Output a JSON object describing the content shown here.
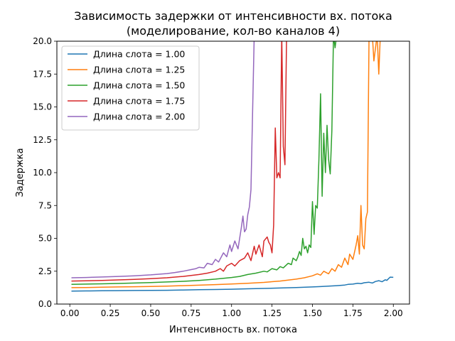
{
  "chart_data": {
    "type": "line",
    "title_line1": "Зависимость задержки от интенсивности вх. потока",
    "title_line2": "(моделирование, кол-во каналов 4)",
    "xlabel": "Интенсивность вх. потока",
    "ylabel": "Задержка",
    "xlim": [
      -0.08,
      2.1
    ],
    "ylim": [
      0,
      20
    ],
    "xticks": [
      0.0,
      0.25,
      0.5,
      0.75,
      1.0,
      1.25,
      1.5,
      1.75,
      2.0
    ],
    "xtick_labels": [
      "0.00",
      "0.25",
      "0.50",
      "0.75",
      "1.00",
      "1.25",
      "1.50",
      "1.75",
      "2.00"
    ],
    "yticks": [
      0.0,
      2.5,
      5.0,
      7.5,
      10.0,
      12.5,
      15.0,
      17.5,
      20.0
    ],
    "ytick_labels": [
      "0.0",
      "2.5",
      "5.0",
      "7.5",
      "10.0",
      "12.5",
      "15.0",
      "17.5",
      "20.0"
    ],
    "grid": false,
    "legend_position": "top-left",
    "series": [
      {
        "name": "Длина слота = 1.00",
        "color": "#1f77b4",
        "points": [
          [
            0.01,
            0.99
          ],
          [
            0.1,
            1.0
          ],
          [
            0.2,
            1.01
          ],
          [
            0.3,
            1.02
          ],
          [
            0.4,
            1.03
          ],
          [
            0.5,
            1.04
          ],
          [
            0.6,
            1.05
          ],
          [
            0.7,
            1.07
          ],
          [
            0.8,
            1.09
          ],
          [
            0.9,
            1.11
          ],
          [
            1.0,
            1.13
          ],
          [
            1.1,
            1.16
          ],
          [
            1.2,
            1.19
          ],
          [
            1.3,
            1.22
          ],
          [
            1.4,
            1.26
          ],
          [
            1.5,
            1.3
          ],
          [
            1.55,
            1.33
          ],
          [
            1.6,
            1.36
          ],
          [
            1.65,
            1.4
          ],
          [
            1.7,
            1.45
          ],
          [
            1.72,
            1.5
          ],
          [
            1.75,
            1.52
          ],
          [
            1.78,
            1.58
          ],
          [
            1.8,
            1.55
          ],
          [
            1.82,
            1.62
          ],
          [
            1.85,
            1.66
          ],
          [
            1.87,
            1.6
          ],
          [
            1.89,
            1.72
          ],
          [
            1.91,
            1.78
          ],
          [
            1.93,
            1.7
          ],
          [
            1.95,
            1.85
          ],
          [
            1.96,
            1.8
          ],
          [
            1.98,
            2.05
          ],
          [
            2.0,
            2.03
          ]
        ]
      },
      {
        "name": "Длина слота = 1.25",
        "color": "#ff7f0e",
        "points": [
          [
            0.01,
            1.25
          ],
          [
            0.1,
            1.26
          ],
          [
            0.2,
            1.28
          ],
          [
            0.3,
            1.3
          ],
          [
            0.4,
            1.32
          ],
          [
            0.5,
            1.34
          ],
          [
            0.6,
            1.37
          ],
          [
            0.7,
            1.4
          ],
          [
            0.8,
            1.44
          ],
          [
            0.9,
            1.48
          ],
          [
            1.0,
            1.53
          ],
          [
            1.1,
            1.58
          ],
          [
            1.2,
            1.65
          ],
          [
            1.3,
            1.75
          ],
          [
            1.35,
            1.82
          ],
          [
            1.4,
            1.9
          ],
          [
            1.45,
            2.0
          ],
          [
            1.5,
            2.15
          ],
          [
            1.53,
            2.3
          ],
          [
            1.55,
            2.2
          ],
          [
            1.57,
            2.5
          ],
          [
            1.6,
            2.3
          ],
          [
            1.62,
            2.7
          ],
          [
            1.64,
            2.5
          ],
          [
            1.66,
            3.0
          ],
          [
            1.68,
            2.8
          ],
          [
            1.7,
            3.5
          ],
          [
            1.72,
            3.0
          ],
          [
            1.73,
            3.8
          ],
          [
            1.75,
            3.4
          ],
          [
            1.77,
            4.5
          ],
          [
            1.78,
            5.2
          ],
          [
            1.79,
            3.8
          ],
          [
            1.8,
            7.5
          ],
          [
            1.81,
            4.5
          ],
          [
            1.82,
            4.2
          ],
          [
            1.83,
            6.5
          ],
          [
            1.84,
            7.0
          ],
          [
            1.85,
            20.5
          ],
          [
            1.87,
            20.5
          ],
          [
            1.88,
            18.5
          ],
          [
            1.9,
            20.5
          ],
          [
            1.91,
            17.5
          ],
          [
            1.92,
            20.5
          ]
        ]
      },
      {
        "name": "Длина слота = 1.50",
        "color": "#2ca02c",
        "points": [
          [
            0.01,
            1.5
          ],
          [
            0.1,
            1.52
          ],
          [
            0.2,
            1.54
          ],
          [
            0.3,
            1.57
          ],
          [
            0.4,
            1.6
          ],
          [
            0.5,
            1.64
          ],
          [
            0.6,
            1.68
          ],
          [
            0.7,
            1.73
          ],
          [
            0.8,
            1.8
          ],
          [
            0.9,
            1.9
          ],
          [
            1.0,
            2.02
          ],
          [
            1.05,
            2.1
          ],
          [
            1.1,
            2.25
          ],
          [
            1.15,
            2.35
          ],
          [
            1.2,
            2.5
          ],
          [
            1.22,
            2.45
          ],
          [
            1.25,
            2.7
          ],
          [
            1.28,
            2.6
          ],
          [
            1.3,
            2.85
          ],
          [
            1.32,
            2.75
          ],
          [
            1.35,
            3.1
          ],
          [
            1.37,
            3.0
          ],
          [
            1.38,
            3.5
          ],
          [
            1.4,
            3.3
          ],
          [
            1.41,
            3.6
          ],
          [
            1.42,
            4.0
          ],
          [
            1.43,
            3.7
          ],
          [
            1.44,
            5.0
          ],
          [
            1.45,
            4.2
          ],
          [
            1.46,
            4.4
          ],
          [
            1.47,
            3.9
          ],
          [
            1.48,
            4.5
          ],
          [
            1.49,
            4.3
          ],
          [
            1.5,
            7.8
          ],
          [
            1.51,
            5.3
          ],
          [
            1.52,
            7.5
          ],
          [
            1.53,
            7.3
          ],
          [
            1.54,
            11.0
          ],
          [
            1.55,
            16.0
          ],
          [
            1.56,
            8.2
          ],
          [
            1.57,
            13.0
          ],
          [
            1.58,
            10.0
          ],
          [
            1.59,
            13.6
          ],
          [
            1.6,
            11.0
          ],
          [
            1.61,
            9.9
          ],
          [
            1.62,
            13.2
          ],
          [
            1.63,
            20.5
          ],
          [
            1.64,
            19.5
          ],
          [
            1.65,
            20.5
          ]
        ]
      },
      {
        "name": "Длина слота = 1.75",
        "color": "#d62728",
        "points": [
          [
            0.01,
            1.75
          ],
          [
            0.1,
            1.77
          ],
          [
            0.2,
            1.8
          ],
          [
            0.3,
            1.84
          ],
          [
            0.4,
            1.88
          ],
          [
            0.5,
            1.93
          ],
          [
            0.6,
            2.0
          ],
          [
            0.7,
            2.1
          ],
          [
            0.8,
            2.25
          ],
          [
            0.85,
            2.35
          ],
          [
            0.9,
            2.5
          ],
          [
            0.93,
            2.7
          ],
          [
            0.95,
            2.5
          ],
          [
            0.97,
            2.9
          ],
          [
            1.0,
            3.1
          ],
          [
            1.02,
            2.9
          ],
          [
            1.05,
            3.3
          ],
          [
            1.08,
            3.5
          ],
          [
            1.1,
            3.9
          ],
          [
            1.12,
            3.3
          ],
          [
            1.14,
            4.4
          ],
          [
            1.15,
            3.8
          ],
          [
            1.17,
            4.5
          ],
          [
            1.19,
            3.6
          ],
          [
            1.2,
            4.8
          ],
          [
            1.22,
            5.1
          ],
          [
            1.23,
            4.7
          ],
          [
            1.24,
            4.5
          ],
          [
            1.25,
            3.9
          ],
          [
            1.26,
            6.0
          ],
          [
            1.27,
            13.4
          ],
          [
            1.28,
            9.6
          ],
          [
            1.29,
            10.0
          ],
          [
            1.3,
            9.6
          ],
          [
            1.31,
            20.5
          ],
          [
            1.32,
            12.0
          ],
          [
            1.33,
            10.6
          ],
          [
            1.34,
            20.5
          ],
          [
            1.35,
            20.5
          ]
        ]
      },
      {
        "name": "Длина слота = 2.00",
        "color": "#9467bd",
        "points": [
          [
            0.01,
            2.0
          ],
          [
            0.1,
            2.02
          ],
          [
            0.2,
            2.06
          ],
          [
            0.3,
            2.1
          ],
          [
            0.4,
            2.15
          ],
          [
            0.5,
            2.22
          ],
          [
            0.6,
            2.32
          ],
          [
            0.65,
            2.4
          ],
          [
            0.7,
            2.5
          ],
          [
            0.75,
            2.62
          ],
          [
            0.78,
            2.7
          ],
          [
            0.8,
            2.8
          ],
          [
            0.83,
            2.75
          ],
          [
            0.85,
            3.1
          ],
          [
            0.88,
            3.0
          ],
          [
            0.9,
            3.4
          ],
          [
            0.92,
            3.2
          ],
          [
            0.95,
            3.9
          ],
          [
            0.97,
            3.6
          ],
          [
            0.99,
            4.5
          ],
          [
            1.0,
            4.0
          ],
          [
            1.02,
            4.8
          ],
          [
            1.04,
            4.2
          ],
          [
            1.05,
            5.0
          ],
          [
            1.06,
            5.8
          ],
          [
            1.07,
            6.7
          ],
          [
            1.08,
            5.5
          ],
          [
            1.09,
            5.7
          ],
          [
            1.1,
            6.8
          ],
          [
            1.11,
            7.4
          ],
          [
            1.12,
            8.7
          ],
          [
            1.13,
            14.6
          ],
          [
            1.14,
            20.5
          ]
        ]
      }
    ]
  }
}
